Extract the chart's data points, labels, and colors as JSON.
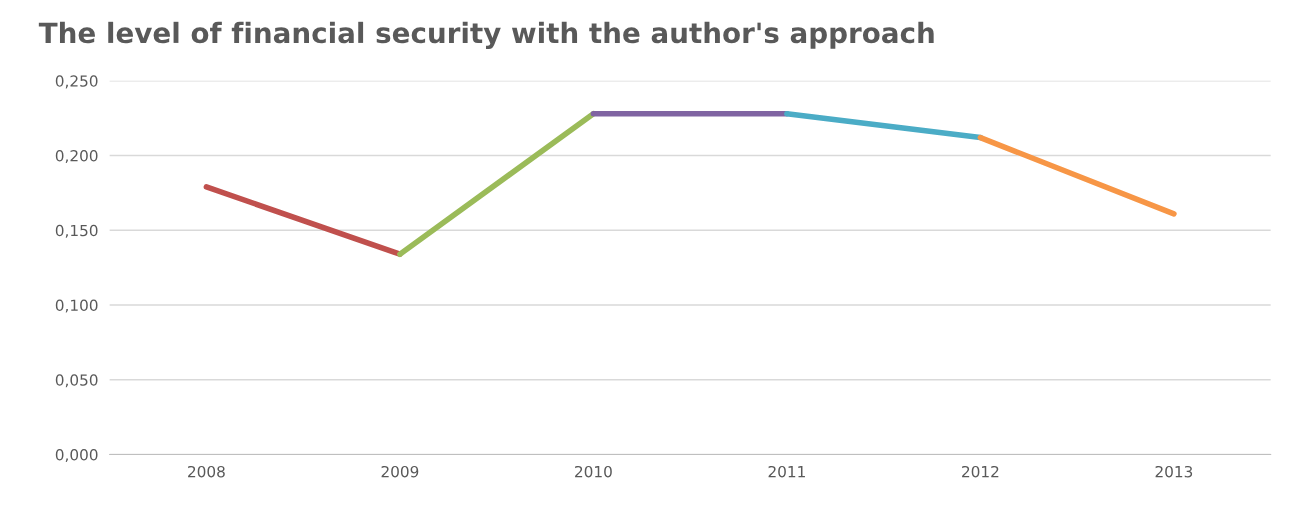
{
  "chart_data": {
    "type": "line",
    "title": "The level of financial security with the author's approach",
    "categories": [
      "2008",
      "2009",
      "2010",
      "2011",
      "2012",
      "2013"
    ],
    "series": [
      {
        "color": "#c0504d",
        "values": [
          0.179,
          0.134,
          null,
          null,
          null,
          null
        ]
      },
      {
        "color": "#9bbb59",
        "values": [
          null,
          0.134,
          0.228,
          null,
          null,
          null
        ]
      },
      {
        "color": "#8064a2",
        "values": [
          null,
          null,
          0.228,
          0.228,
          null,
          null
        ]
      },
      {
        "color": "#4bacc6",
        "values": [
          null,
          null,
          null,
          0.228,
          0.212,
          null
        ]
      },
      {
        "color": "#f79646",
        "values": [
          null,
          null,
          null,
          null,
          0.212,
          0.161
        ]
      }
    ],
    "ylim": [
      0,
      0.25
    ],
    "yticks": [
      {
        "value": 0,
        "label": "0,000"
      },
      {
        "value": 0.05,
        "label": "0,050"
      },
      {
        "value": 0.1,
        "label": "0,100"
      },
      {
        "value": 0.15,
        "label": "0,150"
      },
      {
        "value": 0.2,
        "label": "0,200"
      },
      {
        "value": 0.25,
        "label": "0,250"
      }
    ],
    "grid": "y",
    "marker": "none",
    "line_style": "solid"
  }
}
